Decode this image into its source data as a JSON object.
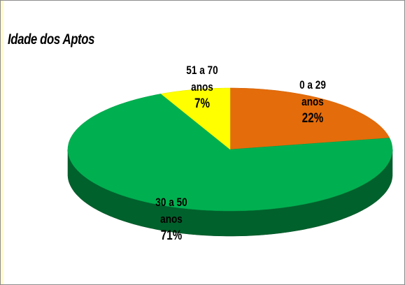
{
  "chart_data": {
    "type": "pie3d",
    "title": "Idade dos Aptos",
    "categories": [
      "0 a 29 anos",
      "30 a 50 anos",
      "51 a 70 anos"
    ],
    "values": [
      22,
      71,
      7
    ],
    "value_labels": [
      "22%",
      "71%",
      "7%"
    ],
    "colors": [
      "#e46c0a",
      "#00b050",
      "#ffff00"
    ]
  }
}
